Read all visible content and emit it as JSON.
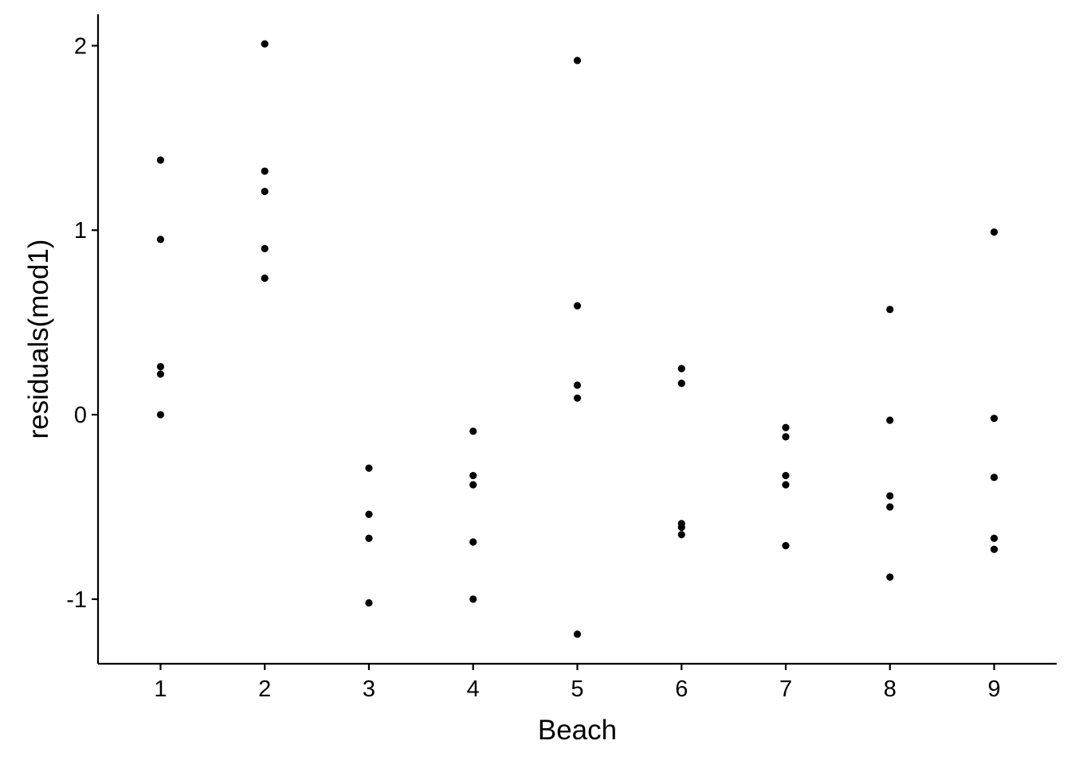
{
  "chart_data": {
    "type": "scatter",
    "xlabel": "Beach",
    "ylabel": "residuals(mod1)",
    "x_categories": [
      "1",
      "2",
      "3",
      "4",
      "5",
      "6",
      "7",
      "8",
      "9"
    ],
    "y_ticks": [
      {
        "value": 2,
        "label": "2"
      },
      {
        "value": 1,
        "label": "1"
      },
      {
        "value": 0,
        "label": "0"
      },
      {
        "value": -1,
        "label": "-1"
      }
    ],
    "xlim": [
      0.4,
      9.6
    ],
    "ylim": [
      -1.35,
      2.17
    ],
    "grid": false,
    "legend": "none",
    "point_color": "#000000",
    "points": [
      {
        "x": 1,
        "y": 1.38
      },
      {
        "x": 1,
        "y": 0.95
      },
      {
        "x": 1,
        "y": 0.26
      },
      {
        "x": 1,
        "y": 0.22
      },
      {
        "x": 1,
        "y": 0.0
      },
      {
        "x": 2,
        "y": 2.01
      },
      {
        "x": 2,
        "y": 1.32
      },
      {
        "x": 2,
        "y": 1.21
      },
      {
        "x": 2,
        "y": 0.9
      },
      {
        "x": 2,
        "y": 0.74
      },
      {
        "x": 3,
        "y": -0.29
      },
      {
        "x": 3,
        "y": -0.54
      },
      {
        "x": 3,
        "y": -0.67
      },
      {
        "x": 3,
        "y": -1.02
      },
      {
        "x": 4,
        "y": -0.09
      },
      {
        "x": 4,
        "y": -0.33
      },
      {
        "x": 4,
        "y": -0.38
      },
      {
        "x": 4,
        "y": -0.69
      },
      {
        "x": 4,
        "y": -1.0
      },
      {
        "x": 5,
        "y": 1.92
      },
      {
        "x": 5,
        "y": 0.59
      },
      {
        "x": 5,
        "y": 0.16
      },
      {
        "x": 5,
        "y": 0.09
      },
      {
        "x": 5,
        "y": -1.19
      },
      {
        "x": 6,
        "y": 0.25
      },
      {
        "x": 6,
        "y": 0.17
      },
      {
        "x": 6,
        "y": -0.59
      },
      {
        "x": 6,
        "y": -0.61
      },
      {
        "x": 6,
        "y": -0.65
      },
      {
        "x": 7,
        "y": -0.07
      },
      {
        "x": 7,
        "y": -0.12
      },
      {
        "x": 7,
        "y": -0.33
      },
      {
        "x": 7,
        "y": -0.38
      },
      {
        "x": 7,
        "y": -0.71
      },
      {
        "x": 8,
        "y": 0.57
      },
      {
        "x": 8,
        "y": -0.03
      },
      {
        "x": 8,
        "y": -0.44
      },
      {
        "x": 8,
        "y": -0.5
      },
      {
        "x": 8,
        "y": -0.88
      },
      {
        "x": 9,
        "y": 0.99
      },
      {
        "x": 9,
        "y": -0.02
      },
      {
        "x": 9,
        "y": -0.34
      },
      {
        "x": 9,
        "y": -0.67
      },
      {
        "x": 9,
        "y": -0.73
      }
    ]
  }
}
